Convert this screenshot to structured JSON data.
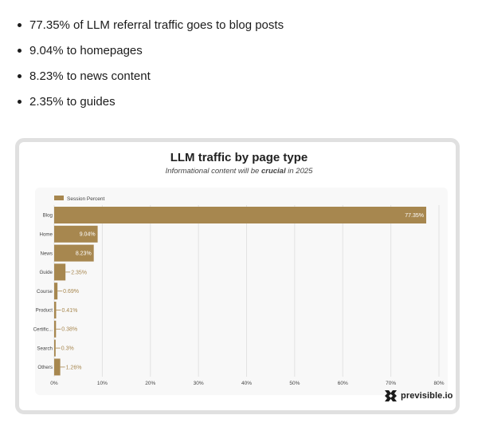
{
  "bullets": [
    "77.35% of LLM referral traffic goes to blog posts",
    "9.04% to homepages",
    "8.23% to news content",
    "2.35% to guides"
  ],
  "brand": {
    "name": "previsible.io",
    "icon": "previsible-logo-icon"
  },
  "colors": {
    "bar": "#a7874f",
    "grid": "#e2e2e2",
    "text": "#444444"
  },
  "chart_data": {
    "type": "bar",
    "orientation": "horizontal",
    "title": "LLM traffic by page type",
    "subtitle": {
      "before": "Informational content will be ",
      "emphasis": "crucial",
      "after": " in 2025"
    },
    "legend": {
      "position": "top-left",
      "entries": [
        "Session Percent"
      ]
    },
    "categories": [
      "Blog",
      "Home",
      "News",
      "Guide",
      "Course",
      "Product",
      "Certific...",
      "Search",
      "Others"
    ],
    "series": [
      {
        "name": "Session Percent",
        "values": [
          77.35,
          9.04,
          8.23,
          2.35,
          0.69,
          0.41,
          0.38,
          0.3,
          1.26
        ],
        "labels": [
          "77.35%",
          "9.04%",
          "8.23%",
          "2.35%",
          "0.69%",
          "0.41%",
          "0.38%",
          "0.3%",
          "1.26%"
        ]
      }
    ],
    "xlim": [
      0,
      80
    ],
    "xticks": [
      0,
      10,
      20,
      30,
      40,
      50,
      60,
      70,
      80
    ],
    "xtick_labels": [
      "0%",
      "10%",
      "20%",
      "30%",
      "40%",
      "50%",
      "60%",
      "70%",
      "80%"
    ],
    "grid": true
  }
}
